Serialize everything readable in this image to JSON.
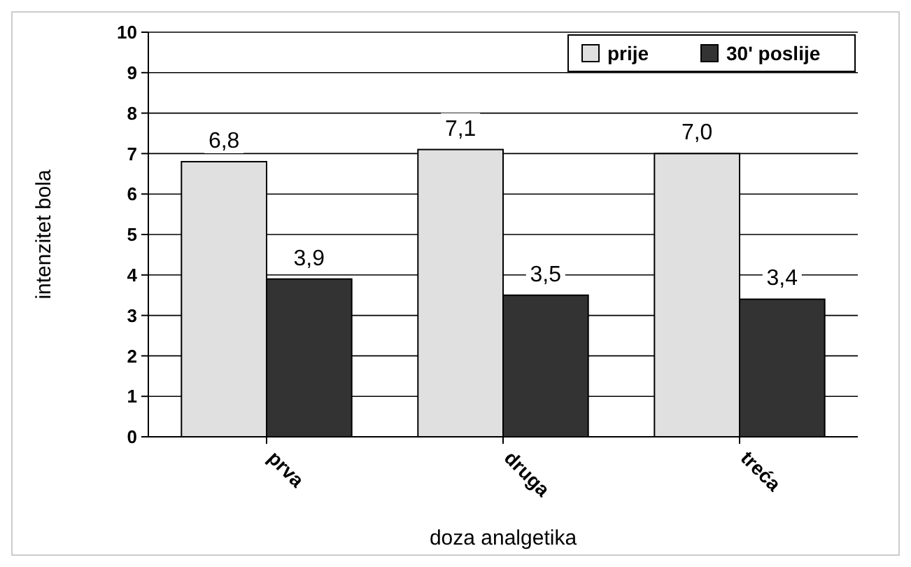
{
  "chart_data": {
    "type": "bar",
    "xlabel": "doza analgetika",
    "ylabel": "intenzitet bola",
    "categories": [
      "prva",
      "druga",
      "treća"
    ],
    "series": [
      {
        "name": "prije",
        "color": "#e0e0e0",
        "values": [
          6.8,
          7.1,
          7.0
        ],
        "value_labels": [
          "6,8",
          "7,1",
          "7,0"
        ]
      },
      {
        "name": "30' poslije",
        "color": "#333333",
        "values": [
          3.9,
          3.5,
          3.4
        ],
        "value_labels": [
          "3,9",
          "3,5",
          "3,4"
        ]
      }
    ],
    "ylim": [
      0,
      10
    ],
    "yticks": [
      0,
      1,
      2,
      3,
      4,
      5,
      6,
      7,
      8,
      9,
      10
    ],
    "grid": "y",
    "legend": "top right"
  }
}
